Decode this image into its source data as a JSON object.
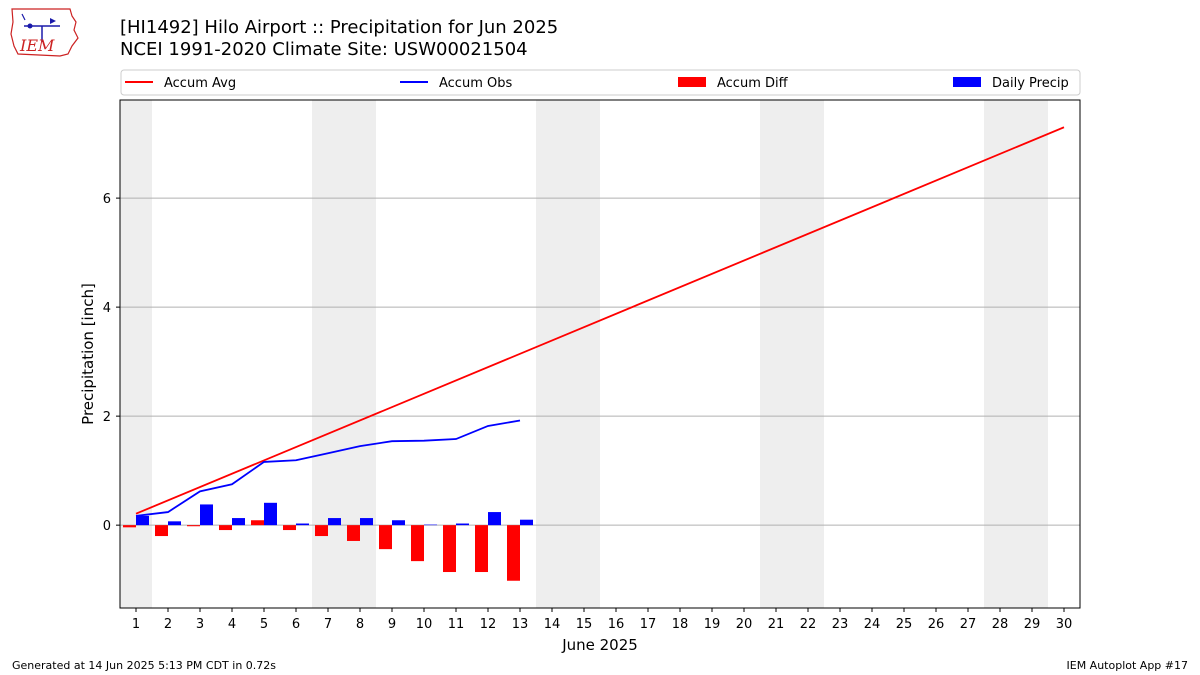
{
  "logo": {
    "text": "IEM"
  },
  "header": {
    "title_line1": "[HI1492] Hilo Airport :: Precipitation for Jun 2025",
    "title_line2": "NCEI 1991-2020 Climate Site: USW00021504"
  },
  "footer": {
    "left": "Generated at 14 Jun 2025 5:13 PM CDT in 0.72s",
    "right": "IEM Autoplot App #17"
  },
  "chart_data": {
    "type": "bar",
    "xlabel": "June 2025",
    "ylabel": "Precipitation [inch]",
    "xlim": [
      0.5,
      30.5
    ],
    "ylim": [
      -1.52,
      7.8
    ],
    "x_ticks": [
      1,
      2,
      3,
      4,
      5,
      6,
      7,
      8,
      9,
      10,
      11,
      12,
      13,
      14,
      15,
      16,
      17,
      18,
      19,
      20,
      21,
      22,
      23,
      24,
      25,
      26,
      27,
      28,
      29,
      30
    ],
    "y_ticks": [
      0,
      2,
      4,
      6
    ],
    "grid": "y",
    "weekend_shading": [
      [
        0.5,
        1.5
      ],
      [
        6.5,
        8.5
      ],
      [
        13.5,
        15.5
      ],
      [
        20.5,
        22.5
      ],
      [
        27.5,
        29.5
      ]
    ],
    "colors": {
      "accum_avg": "#ff0000",
      "accum_obs": "#0000ff",
      "accum_diff": "#ff0000",
      "daily_precip": "#0000ff",
      "shade": "#eeeeee"
    },
    "legend_position": "top",
    "series": [
      {
        "name": "Accum Avg",
        "kind": "line",
        "x": [
          1,
          30
        ],
        "values": [
          0.21,
          7.3
        ]
      },
      {
        "name": "Accum Obs",
        "kind": "line",
        "x": [
          1,
          2,
          3,
          4,
          5,
          6,
          7,
          8,
          9,
          10,
          11,
          12,
          13
        ],
        "values": [
          0.17,
          0.24,
          0.62,
          0.75,
          1.16,
          1.19,
          1.32,
          1.45,
          1.54,
          1.55,
          1.58,
          1.82,
          1.92
        ]
      },
      {
        "name": "Accum Diff",
        "kind": "bar",
        "x": [
          1,
          2,
          3,
          4,
          5,
          6,
          7,
          8,
          9,
          10,
          11,
          12,
          13
        ],
        "values": [
          -0.04,
          -0.2,
          -0.02,
          -0.09,
          0.09,
          -0.09,
          -0.2,
          -0.29,
          -0.44,
          -0.66,
          -0.86,
          -0.86,
          -1.02
        ]
      },
      {
        "name": "Daily Precip",
        "kind": "bar",
        "x": [
          1,
          2,
          3,
          4,
          5,
          6,
          7,
          8,
          9,
          10,
          11,
          12,
          13
        ],
        "values": [
          0.17,
          0.07,
          0.38,
          0.13,
          0.41,
          0.03,
          0.13,
          0.13,
          0.09,
          0.01,
          0.03,
          0.24,
          0.1
        ]
      }
    ]
  }
}
